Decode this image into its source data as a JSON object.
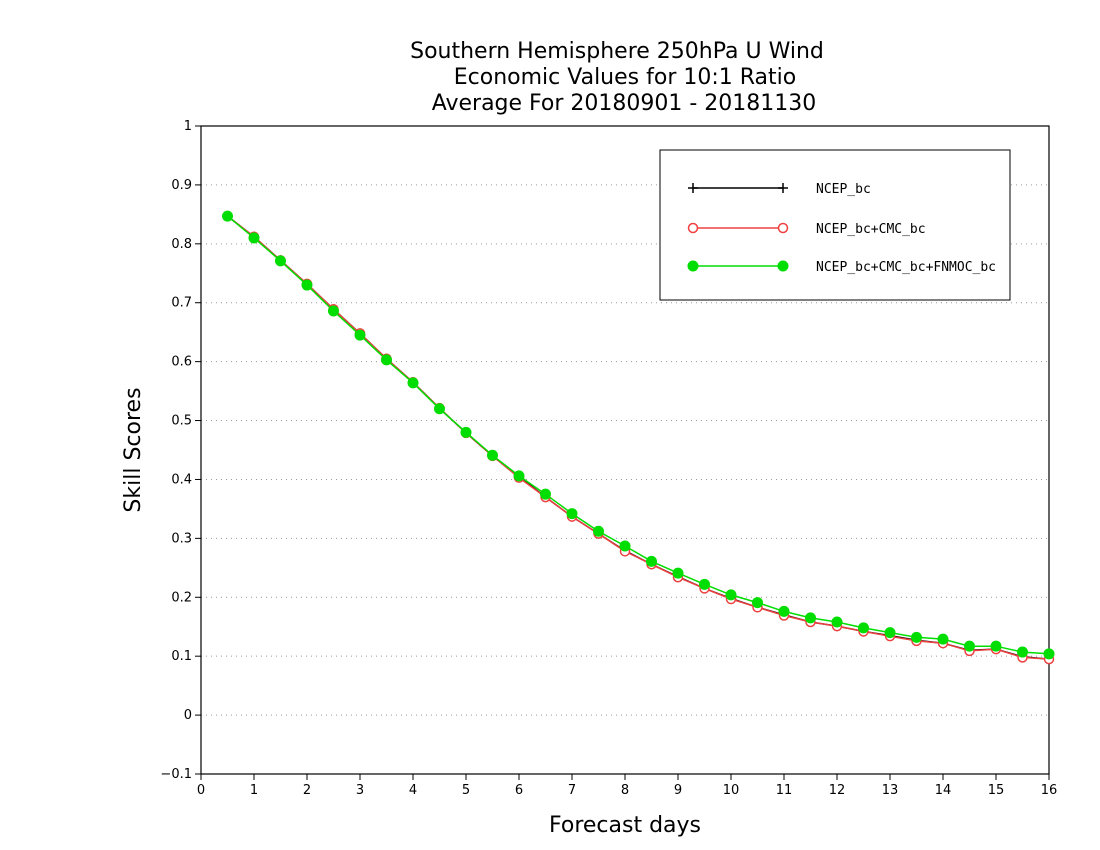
{
  "chart_data": {
    "type": "line",
    "title_lines": [
      "Southern Hemisphere 250hPa U Wind",
      "Economic Values for 10:1 Ratio",
      "Average For 20180901 - 20181130"
    ],
    "xlabel": "Forecast days",
    "ylabel": "Skill Scores",
    "xlim": [
      0,
      16
    ],
    "ylim": [
      -0.1,
      1
    ],
    "xticks": [
      0,
      1,
      2,
      3,
      4,
      5,
      6,
      7,
      8,
      9,
      10,
      11,
      12,
      13,
      14,
      15,
      16
    ],
    "xtick_labels": [
      "0",
      "1",
      "2",
      "3",
      "4",
      "5",
      "6",
      "7",
      "8",
      "9",
      "10",
      "11",
      "12",
      "13",
      "14",
      "15",
      "16"
    ],
    "yticks": [
      -0.1,
      0,
      0.1,
      0.2,
      0.3,
      0.4,
      0.5,
      0.6,
      0.7,
      0.8,
      0.9,
      1
    ],
    "ytick_labels": [
      "−0.1",
      "0",
      "0.1",
      "0.2",
      "0.3",
      "0.4",
      "0.5",
      "0.6",
      "0.7",
      "0.8",
      "0.9",
      "1"
    ],
    "grid": true,
    "legend_position": "top-right",
    "x": [
      0.5,
      1,
      1.5,
      2,
      2.5,
      3,
      3.5,
      4,
      4.5,
      5,
      5.5,
      6,
      6.5,
      7,
      7.5,
      8,
      8.5,
      9,
      9.5,
      10,
      10.5,
      11,
      11.5,
      12,
      12.5,
      13,
      13.5,
      14,
      14.5,
      15,
      15.5,
      16
    ],
    "series": [
      {
        "name": "NCEP_bc",
        "color": "#000000",
        "marker": "plus",
        "values": [
          0.847,
          0.812,
          0.772,
          0.732,
          0.689,
          0.648,
          0.605,
          0.565,
          0.521,
          0.479,
          0.44,
          0.405,
          0.37,
          0.337,
          0.308,
          0.279,
          0.256,
          0.235,
          0.215,
          0.198,
          0.183,
          0.17,
          0.158,
          0.151,
          0.142,
          0.135,
          0.127,
          0.122,
          0.11,
          0.112,
          0.099,
          0.095
        ]
      },
      {
        "name": "NCEP_bc+CMC_bc",
        "color": "#ee4040",
        "marker": "open-circle",
        "values": [
          0.847,
          0.812,
          0.772,
          0.732,
          0.689,
          0.648,
          0.605,
          0.565,
          0.521,
          0.479,
          0.44,
          0.403,
          0.37,
          0.337,
          0.308,
          0.278,
          0.256,
          0.234,
          0.215,
          0.197,
          0.183,
          0.169,
          0.158,
          0.151,
          0.142,
          0.134,
          0.126,
          0.122,
          0.109,
          0.112,
          0.098,
          0.095
        ]
      },
      {
        "name": "NCEP_bc+CMC_bc+FNMOC_bc",
        "color": "#00dd00",
        "marker": "filled-circle",
        "values": [
          0.847,
          0.81,
          0.771,
          0.73,
          0.686,
          0.645,
          0.603,
          0.564,
          0.52,
          0.48,
          0.441,
          0.406,
          0.375,
          0.342,
          0.312,
          0.287,
          0.261,
          0.241,
          0.222,
          0.204,
          0.191,
          0.176,
          0.165,
          0.158,
          0.148,
          0.14,
          0.132,
          0.129,
          0.117,
          0.117,
          0.107,
          0.104
        ]
      }
    ]
  }
}
